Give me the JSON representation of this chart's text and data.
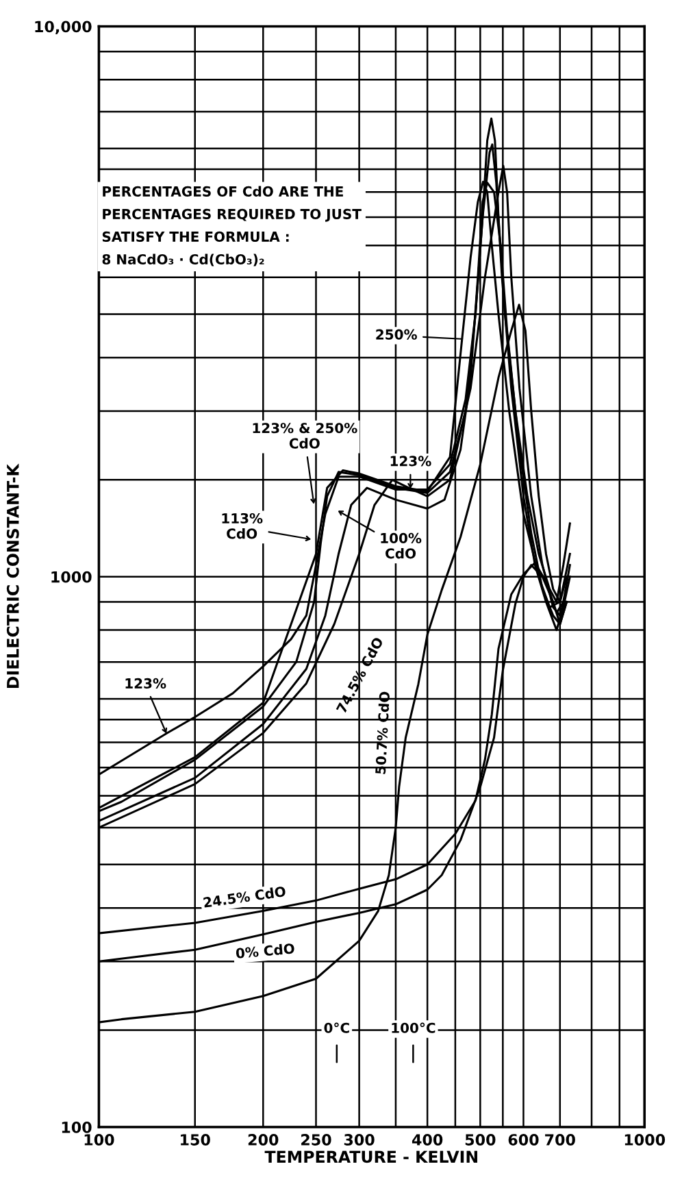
{
  "chart_data": {
    "type": "line",
    "xlabel": "TEMPERATURE - KELVIN",
    "ylabel": "DIELECTRIC CONSTANT-K",
    "log": "xy",
    "grid": true,
    "marker": "none",
    "line_style": "solid",
    "xlim": [
      100,
      1000
    ],
    "ylim": [
      100,
      10000
    ],
    "xticks": [
      100,
      150,
      200,
      250,
      300,
      {
        "value": 350,
        "label": null
      },
      400,
      {
        "value": 450,
        "label": null
      },
      500,
      {
        "value": 550,
        "label": null
      },
      600,
      700,
      {
        "value": 800,
        "label": null
      },
      {
        "value": 900,
        "label": null
      },
      1000
    ],
    "yticks": [
      100,
      {
        "value": 150,
        "label": null
      },
      {
        "value": 200,
        "label": null
      },
      {
        "value": 250,
        "label": null
      },
      {
        "value": 300,
        "label": null
      },
      {
        "value": 350,
        "label": null
      },
      {
        "value": 400,
        "label": null
      },
      {
        "value": 450,
        "label": null
      },
      {
        "value": 500,
        "label": null
      },
      {
        "value": 550,
        "label": null
      },
      {
        "value": 600,
        "label": null
      },
      {
        "value": 700,
        "label": null
      },
      {
        "value": 800,
        "label": null
      },
      {
        "value": 900,
        "label": null
      },
      1000,
      {
        "value": 1500,
        "label": null
      },
      {
        "value": 2000,
        "label": null
      },
      {
        "value": 2500,
        "label": null
      },
      {
        "value": 3000,
        "label": null
      },
      {
        "value": 3500,
        "label": null
      },
      {
        "value": 4000,
        "label": null
      },
      {
        "value": 4500,
        "label": null
      },
      {
        "value": 5000,
        "label": null
      },
      {
        "value": 5500,
        "label": null
      },
      {
        "value": 6000,
        "label": null
      },
      {
        "value": 7000,
        "label": null
      },
      {
        "value": 8000,
        "label": null
      },
      {
        "value": 9000,
        "label": null
      },
      {
        "value": 10000,
        "label": "10,000"
      }
    ],
    "series": [
      {
        "color": "#000000",
        "x": [
          100,
          133,
          150,
          176,
          200,
          225,
          240,
          250,
          260,
          275,
          300,
          350,
          400,
          440,
          470,
          490,
          505,
          515,
          524,
          532,
          540,
          555,
          580,
          610,
          640,
          670,
          690,
          710,
          730
        ],
        "values": [
          437,
          519,
          556,
          614,
          687,
          770,
          850,
          1050,
          1300,
          1520,
          1520,
          1440,
          1440,
          1600,
          2100,
          3000,
          4500,
          6200,
          6800,
          6200,
          4500,
          3000,
          2000,
          1400,
          1100,
          950,
          900,
          1050,
          1250
        ]
      },
      {
        "color": "#000000",
        "x": [
          100,
          110,
          150,
          200,
          230,
          248,
          255,
          262,
          275,
          300,
          350,
          400,
          440,
          470,
          490,
          505,
          520,
          526,
          535,
          548,
          570,
          600,
          630,
          660,
          690,
          710,
          730
        ],
        "values": [
          375,
          390,
          465,
          581,
          700,
          900,
          1150,
          1400,
          1550,
          1530,
          1450,
          1420,
          1550,
          2000,
          3000,
          4500,
          5900,
          6100,
          5200,
          3500,
          2200,
          1400,
          1050,
          900,
          800,
          880,
          1000
        ]
      },
      {
        "color": "#000000",
        "x": [
          100,
          150,
          200,
          250,
          262,
          280,
          300,
          350,
          400,
          440,
          463,
          480,
          495,
          506,
          515,
          525,
          540,
          565,
          600,
          640,
          670,
          700,
          730
        ],
        "values": [
          380,
          470,
          590,
          1100,
          1450,
          1560,
          1540,
          1460,
          1430,
          1650,
          2700,
          3800,
          4800,
          5220,
          5000,
          4000,
          3000,
          2000,
          1300,
          1000,
          880,
          900,
          1100
        ]
      },
      {
        "color": "#000000",
        "x": [
          100,
          150,
          200,
          240,
          260,
          275,
          290,
          310,
          350,
          400,
          430,
          460,
          480,
          495,
          505,
          515,
          530,
          545,
          560,
          590,
          620,
          650,
          680,
          700,
          720
        ],
        "values": [
          360,
          431,
          540,
          680,
          850,
          1100,
          1350,
          1450,
          1380,
          1330,
          1380,
          1700,
          2300,
          3500,
          4800,
          5200,
          5000,
          4000,
          2800,
          1700,
          1200,
          950,
          850,
          820,
          900
        ]
      },
      {
        "color": "#000000",
        "x": [
          100,
          150,
          200,
          240,
          270,
          300,
          320,
          345,
          370,
          400,
          440,
          480,
          510,
          540,
          551,
          560,
          570,
          590,
          620,
          650,
          680,
          700,
          720
        ],
        "values": [
          350,
          420,
          520,
          640,
          820,
          1100,
          1350,
          1500,
          1450,
          1400,
          1500,
          2200,
          3500,
          5000,
          5580,
          5000,
          3500,
          2200,
          1400,
          1050,
          880,
          850,
          950
        ]
      },
      {
        "color": "#000000",
        "x": [
          100,
          110,
          150,
          200,
          250,
          300,
          325,
          340,
          350,
          355,
          365,
          385,
          400,
          425,
          460,
          500,
          540,
          570,
          589,
          605,
          620,
          640,
          660,
          680,
          700,
          720
        ],
        "values": [
          155,
          157,
          162,
          173,
          186,
          218,
          247,
          287,
          350,
          415,
          510,
          638,
          785,
          946,
          1180,
          1600,
          2300,
          2800,
          3120,
          2800,
          2000,
          1400,
          1100,
          950,
          900,
          1000
        ]
      },
      {
        "color": "#000000",
        "x": [
          100,
          150,
          200,
          250,
          300,
          350,
          400,
          425,
          460,
          500,
          530,
          550,
          580,
          600,
          620,
          650,
          680,
          700,
          720
        ],
        "values": [
          200,
          210,
          224,
          236,
          245,
          254,
          270,
          287,
          332,
          415,
          510,
          676,
          893,
          1000,
          1050,
          1000,
          900,
          820,
          900
        ]
      },
      {
        "color": "#000000",
        "x": [
          100,
          150,
          200,
          250,
          300,
          350,
          400,
          450,
          490,
          510,
          525,
          540,
          570,
          600,
          630,
          660,
          690,
          710,
          730
        ],
        "values": [
          225,
          235,
          247,
          258,
          271,
          282,
          300,
          341,
          392,
          465,
          562,
          740,
          929,
          1010,
          1060,
          980,
          860,
          900,
          1050
        ]
      }
    ],
    "annotations": [
      "PERCENTAGES OF CdO ARE THE\nPERCENTAGES REQUIRED TO JUST\nSATISFY THE FORMULA :\n8 NaCdO₃ · Cd(CbO₃)₂",
      "250%",
      "123% & 250%\nCdO",
      "123%",
      "113%\nCdO",
      "100%\nCdO",
      "74.5% CdO",
      "50.7% CdO",
      {
        "text": "123%",
        "x": 133,
        "y": 519
      },
      "24.5% CdO",
      "0% CdO",
      "0°C",
      "100°C"
    ]
  }
}
